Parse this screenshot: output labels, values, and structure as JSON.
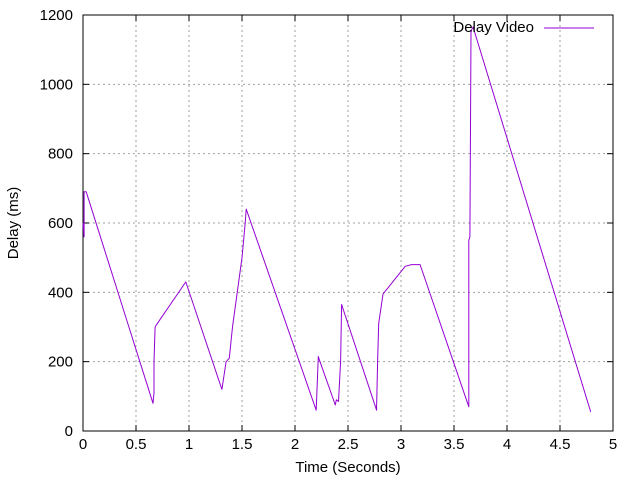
{
  "chart_data": {
    "type": "line",
    "title": "",
    "xlabel": "Time (Seconds)",
    "ylabel": "Delay (ms)",
    "xlim": [
      0,
      5
    ],
    "ylim": [
      0,
      1200
    ],
    "xticks": [
      0,
      0.5,
      1,
      1.5,
      2,
      2.5,
      3,
      3.5,
      4,
      4.5,
      5
    ],
    "xtick_labels": [
      "0",
      "0.5",
      "1",
      "1.5",
      "2",
      "2.5",
      "3",
      "3.5",
      "4",
      "4.5",
      "5"
    ],
    "yticks": [
      0,
      200,
      400,
      600,
      800,
      1000,
      1200
    ],
    "ytick_labels": [
      "0",
      "200",
      "400",
      "600",
      "800",
      "1000",
      "1200"
    ],
    "grid": true,
    "legend_position": "top-right",
    "series": [
      {
        "name": "Delay Video",
        "color": "#9400d3",
        "x": [
          0.0,
          0.01,
          0.01,
          0.03,
          0.66,
          0.67,
          0.67,
          0.68,
          0.69,
          0.97,
          1.31,
          1.35,
          1.38,
          1.41,
          1.5,
          1.53,
          1.54,
          2.2,
          2.22,
          2.23,
          2.38,
          2.39,
          2.41,
          2.43,
          2.44,
          2.77,
          2.77,
          2.78,
          2.79,
          2.83,
          3.04,
          3.1,
          3.18,
          3.64,
          3.64,
          3.65,
          3.66,
          3.67,
          3.68,
          4.79
        ],
        "y": [
          600,
          560,
          690,
          690,
          80,
          110,
          200,
          300,
          305,
          430,
          120,
          200,
          210,
          300,
          500,
          600,
          640,
          60,
          215,
          205,
          75,
          90,
          85,
          200,
          365,
          60,
          70,
          210,
          310,
          395,
          475,
          480,
          480,
          70,
          550,
          560,
          1150,
          1160,
          1165,
          55
        ]
      }
    ]
  }
}
